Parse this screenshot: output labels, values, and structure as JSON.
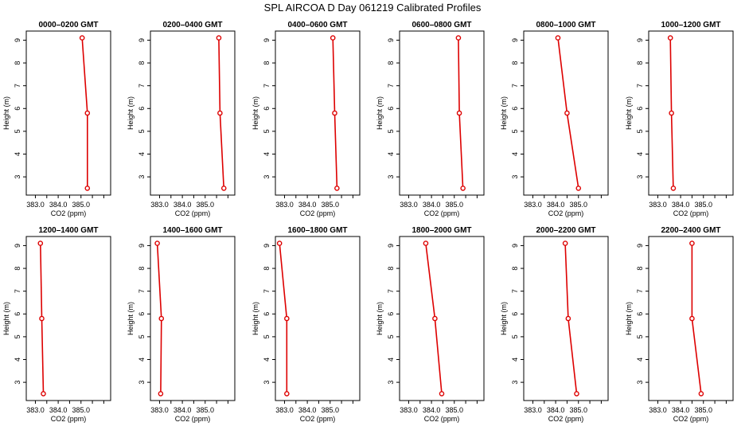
{
  "suptitle": "SPL AIRCOA D  Day 061219  Calibrated Profiles",
  "colors": {
    "series": "#dd0000",
    "axis": "#000000"
  },
  "chart_data": [
    {
      "type": "line",
      "title": "0000–0200 GMT",
      "xlabel": "CO2 (ppm)",
      "ylabel": "Height (m)",
      "xlim": [
        382.6,
        386.3
      ],
      "ylim": [
        2.2,
        9.4
      ],
      "xticks": [
        383,
        383.5,
        384,
        384.5,
        385,
        385.5,
        386
      ],
      "xticklabels": [
        "383.0",
        "",
        "384.0",
        "",
        "385.0",
        "",
        ""
      ],
      "yticks": [
        3,
        4,
        5,
        6,
        7,
        8,
        9
      ],
      "yticklabels": [
        "3",
        "4",
        "5",
        "6",
        "7",
        "8",
        "9"
      ],
      "series": [
        {
          "x": [
            385.05,
            385.28,
            385.28
          ],
          "y": [
            9.1,
            5.8,
            2.5
          ]
        }
      ]
    },
    {
      "type": "line",
      "title": "0200–0400 GMT",
      "xlabel": "CO2 (ppm)",
      "ylabel": "Height (m)",
      "xlim": [
        382.6,
        386.3
      ],
      "ylim": [
        2.2,
        9.4
      ],
      "xticks": [
        383,
        383.5,
        384,
        384.5,
        385,
        385.5,
        386
      ],
      "xticklabels": [
        "383.0",
        "",
        "384.0",
        "",
        "385.0",
        "",
        ""
      ],
      "yticks": [
        3,
        4,
        5,
        6,
        7,
        8,
        9
      ],
      "yticklabels": [
        "3",
        "4",
        "5",
        "6",
        "7",
        "8",
        "9"
      ],
      "series": [
        {
          "x": [
            385.6,
            385.65,
            385.82
          ],
          "y": [
            9.1,
            5.8,
            2.5
          ]
        }
      ]
    },
    {
      "type": "line",
      "title": "0400–0600 GMT",
      "xlabel": "CO2 (ppm)",
      "ylabel": "Height (m)",
      "xlim": [
        382.6,
        386.3
      ],
      "ylim": [
        2.2,
        9.4
      ],
      "xticks": [
        383,
        383.5,
        384,
        384.5,
        385,
        385.5,
        386
      ],
      "xticklabels": [
        "383.0",
        "",
        "384.0",
        "",
        "385.0",
        "",
        ""
      ],
      "yticks": [
        3,
        4,
        5,
        6,
        7,
        8,
        9
      ],
      "yticklabels": [
        "3",
        "4",
        "5",
        "6",
        "7",
        "8",
        "9"
      ],
      "series": [
        {
          "x": [
            385.12,
            385.2,
            385.3
          ],
          "y": [
            9.1,
            5.8,
            2.5
          ]
        }
      ]
    },
    {
      "type": "line",
      "title": "0600–0800 GMT",
      "xlabel": "CO2 (ppm)",
      "ylabel": "Height (m)",
      "xlim": [
        382.6,
        386.3
      ],
      "ylim": [
        2.2,
        9.4
      ],
      "xticks": [
        383,
        383.5,
        384,
        384.5,
        385,
        385.5,
        386
      ],
      "xticklabels": [
        "383.0",
        "",
        "384.0",
        "",
        "385.0",
        "",
        ""
      ],
      "yticks": [
        3,
        4,
        5,
        6,
        7,
        8,
        9
      ],
      "yticklabels": [
        "3",
        "4",
        "5",
        "6",
        "7",
        "8",
        "9"
      ],
      "series": [
        {
          "x": [
            385.18,
            385.22,
            385.38
          ],
          "y": [
            9.1,
            5.8,
            2.5
          ]
        }
      ]
    },
    {
      "type": "line",
      "title": "0800–1000 GMT",
      "xlabel": "CO2 (ppm)",
      "ylabel": "Height (m)",
      "xlim": [
        382.6,
        386.3
      ],
      "ylim": [
        2.2,
        9.4
      ],
      "xticks": [
        383,
        383.5,
        384,
        384.5,
        385,
        385.5,
        386
      ],
      "xticklabels": [
        "383.0",
        "",
        "384.0",
        "",
        "385.0",
        "",
        ""
      ],
      "yticks": [
        3,
        4,
        5,
        6,
        7,
        8,
        9
      ],
      "yticklabels": [
        "3",
        "4",
        "5",
        "6",
        "7",
        "8",
        "9"
      ],
      "series": [
        {
          "x": [
            384.1,
            384.5,
            385.0
          ],
          "y": [
            9.1,
            5.8,
            2.5
          ]
        }
      ]
    },
    {
      "type": "line",
      "title": "1000–1200 GMT",
      "xlabel": "CO2 (ppm)",
      "ylabel": "Height (m)",
      "xlim": [
        382.6,
        386.3
      ],
      "ylim": [
        2.2,
        9.4
      ],
      "xticks": [
        383,
        383.5,
        384,
        384.5,
        385,
        385.5,
        386
      ],
      "xticklabels": [
        "383.0",
        "",
        "384.0",
        "",
        "385.0",
        "",
        ""
      ],
      "yticks": [
        3,
        4,
        5,
        6,
        7,
        8,
        9
      ],
      "yticklabels": [
        "3",
        "4",
        "5",
        "6",
        "7",
        "8",
        "9"
      ],
      "series": [
        {
          "x": [
            383.55,
            383.6,
            383.68
          ],
          "y": [
            9.1,
            5.8,
            2.5
          ]
        }
      ]
    },
    {
      "type": "line",
      "title": "1200–1400 GMT",
      "xlabel": "CO2 (ppm)",
      "ylabel": "Height (m)",
      "xlim": [
        382.6,
        386.3
      ],
      "ylim": [
        2.2,
        9.4
      ],
      "xticks": [
        383,
        383.5,
        384,
        384.5,
        385,
        385.5,
        386
      ],
      "xticklabels": [
        "383.0",
        "",
        "384.0",
        "",
        "385.0",
        "",
        ""
      ],
      "yticks": [
        3,
        4,
        5,
        6,
        7,
        8,
        9
      ],
      "yticklabels": [
        "3",
        "4",
        "5",
        "6",
        "7",
        "8",
        "9"
      ],
      "series": [
        {
          "x": [
            383.22,
            383.28,
            383.35
          ],
          "y": [
            9.1,
            5.8,
            2.5
          ]
        }
      ]
    },
    {
      "type": "line",
      "title": "1400–1600 GMT",
      "xlabel": "CO2 (ppm)",
      "ylabel": "Height (m)",
      "xlim": [
        382.6,
        386.3
      ],
      "ylim": [
        2.2,
        9.4
      ],
      "xticks": [
        383,
        383.5,
        384,
        384.5,
        385,
        385.5,
        386
      ],
      "xticklabels": [
        "383.0",
        "",
        "384.0",
        "",
        "385.0",
        "",
        ""
      ],
      "yticks": [
        3,
        4,
        5,
        6,
        7,
        8,
        9
      ],
      "yticklabels": [
        "3",
        "4",
        "5",
        "6",
        "7",
        "8",
        "9"
      ],
      "series": [
        {
          "x": [
            382.9,
            383.08,
            383.05
          ],
          "y": [
            9.1,
            5.8,
            2.5
          ]
        }
      ]
    },
    {
      "type": "line",
      "title": "1600–1800 GMT",
      "xlabel": "CO2 (ppm)",
      "ylabel": "Height (m)",
      "xlim": [
        382.6,
        386.3
      ],
      "ylim": [
        2.2,
        9.4
      ],
      "xticks": [
        383,
        383.5,
        384,
        384.5,
        385,
        385.5,
        386
      ],
      "xticklabels": [
        "383.0",
        "",
        "384.0",
        "",
        "385.0",
        "",
        ""
      ],
      "yticks": [
        3,
        4,
        5,
        6,
        7,
        8,
        9
      ],
      "yticklabels": [
        "3",
        "4",
        "5",
        "6",
        "7",
        "8",
        "9"
      ],
      "series": [
        {
          "x": [
            382.78,
            383.1,
            383.1
          ],
          "y": [
            9.1,
            5.8,
            2.5
          ]
        }
      ]
    },
    {
      "type": "line",
      "title": "1800–2000 GMT",
      "xlabel": "CO2 (ppm)",
      "ylabel": "Height (m)",
      "xlim": [
        382.6,
        386.3
      ],
      "ylim": [
        2.2,
        9.4
      ],
      "xticks": [
        383,
        383.5,
        384,
        384.5,
        385,
        385.5,
        386
      ],
      "xticklabels": [
        "383.0",
        "",
        "384.0",
        "",
        "385.0",
        "",
        ""
      ],
      "yticks": [
        3,
        4,
        5,
        6,
        7,
        8,
        9
      ],
      "yticklabels": [
        "3",
        "4",
        "5",
        "6",
        "7",
        "8",
        "9"
      ],
      "series": [
        {
          "x": [
            383.75,
            384.15,
            384.45
          ],
          "y": [
            9.1,
            5.8,
            2.5
          ]
        }
      ]
    },
    {
      "type": "line",
      "title": "2000–2200 GMT",
      "xlabel": "CO2 (ppm)",
      "ylabel": "Height (m)",
      "xlim": [
        382.6,
        386.3
      ],
      "ylim": [
        2.2,
        9.4
      ],
      "xticks": [
        383,
        383.5,
        384,
        384.5,
        385,
        385.5,
        386
      ],
      "xticklabels": [
        "383.0",
        "",
        "384.0",
        "",
        "385.0",
        "",
        ""
      ],
      "yticks": [
        3,
        4,
        5,
        6,
        7,
        8,
        9
      ],
      "yticklabels": [
        "3",
        "4",
        "5",
        "6",
        "7",
        "8",
        "9"
      ],
      "series": [
        {
          "x": [
            384.42,
            384.55,
            384.92
          ],
          "y": [
            9.1,
            5.8,
            2.5
          ]
        }
      ]
    },
    {
      "type": "line",
      "title": "2200–2400 GMT",
      "xlabel": "CO2 (ppm)",
      "ylabel": "Height (m)",
      "xlim": [
        382.6,
        386.3
      ],
      "ylim": [
        2.2,
        9.4
      ],
      "xticks": [
        383,
        383.5,
        384,
        384.5,
        385,
        385.5,
        386
      ],
      "xticklabels": [
        "383.0",
        "",
        "384.0",
        "",
        "385.0",
        "",
        ""
      ],
      "yticks": [
        3,
        4,
        5,
        6,
        7,
        8,
        9
      ],
      "yticklabels": [
        "3",
        "4",
        "5",
        "6",
        "7",
        "8",
        "9"
      ],
      "series": [
        {
          "x": [
            384.5,
            384.5,
            384.9
          ],
          "y": [
            9.1,
            5.8,
            2.5
          ]
        }
      ]
    }
  ]
}
